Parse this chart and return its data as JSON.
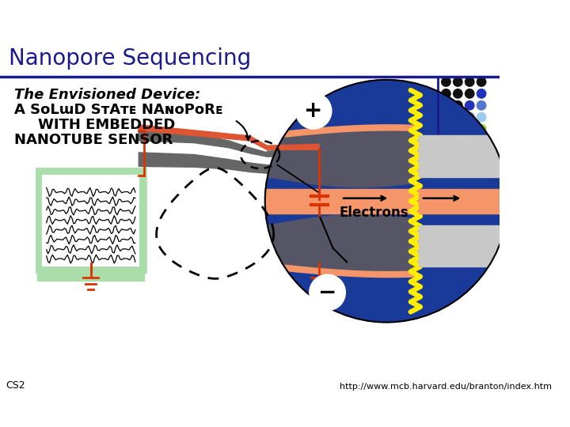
{
  "title": "Nanopore Sequencing",
  "title_color": "#1a1a8c",
  "title_fontsize": 20,
  "bg_color": "#ffffff",
  "header_line_color": "#1a1a8c",
  "url_text": "http://www.mcb.harvard.edu/branton/index.htm",
  "url_fontsize": 8,
  "cs_text": "CS2",
  "cs_fontsize": 9,
  "dot_colors_map": [
    [
      "#111111",
      "#111111",
      "#111111",
      "#111111"
    ],
    [
      "#111111",
      "#111111",
      "#111111",
      "#2233bb"
    ],
    [
      "#111111",
      "#111111",
      "#2233bb",
      "#5577cc"
    ],
    [
      "#111111",
      "#2233bb",
      "#5577cc",
      "#99ccee"
    ],
    [
      "#2233bb",
      "#5577cc",
      "#99ccee",
      "#88cc22"
    ],
    [
      "#2233bb",
      "#99ccee",
      "#88cc22",
      "#aadd33"
    ],
    [
      "#99ccee",
      "#88cc22",
      "#aadd33",
      "#bbee44"
    ],
    [
      "#88cc22",
      "#aadd33",
      "#bbee44",
      "#ccee55"
    ]
  ],
  "circle_color": "#1a3a9a",
  "gray_band_color": "#c8c8c8",
  "salmon_color": "#f4956a",
  "yellow_color": "#ffee00",
  "white_color": "#ffffff",
  "red_wire_color": "#dd3300",
  "dark_gray": "#555555",
  "green_box_color": "#aaddaa",
  "green_border_color": "#44aa66"
}
